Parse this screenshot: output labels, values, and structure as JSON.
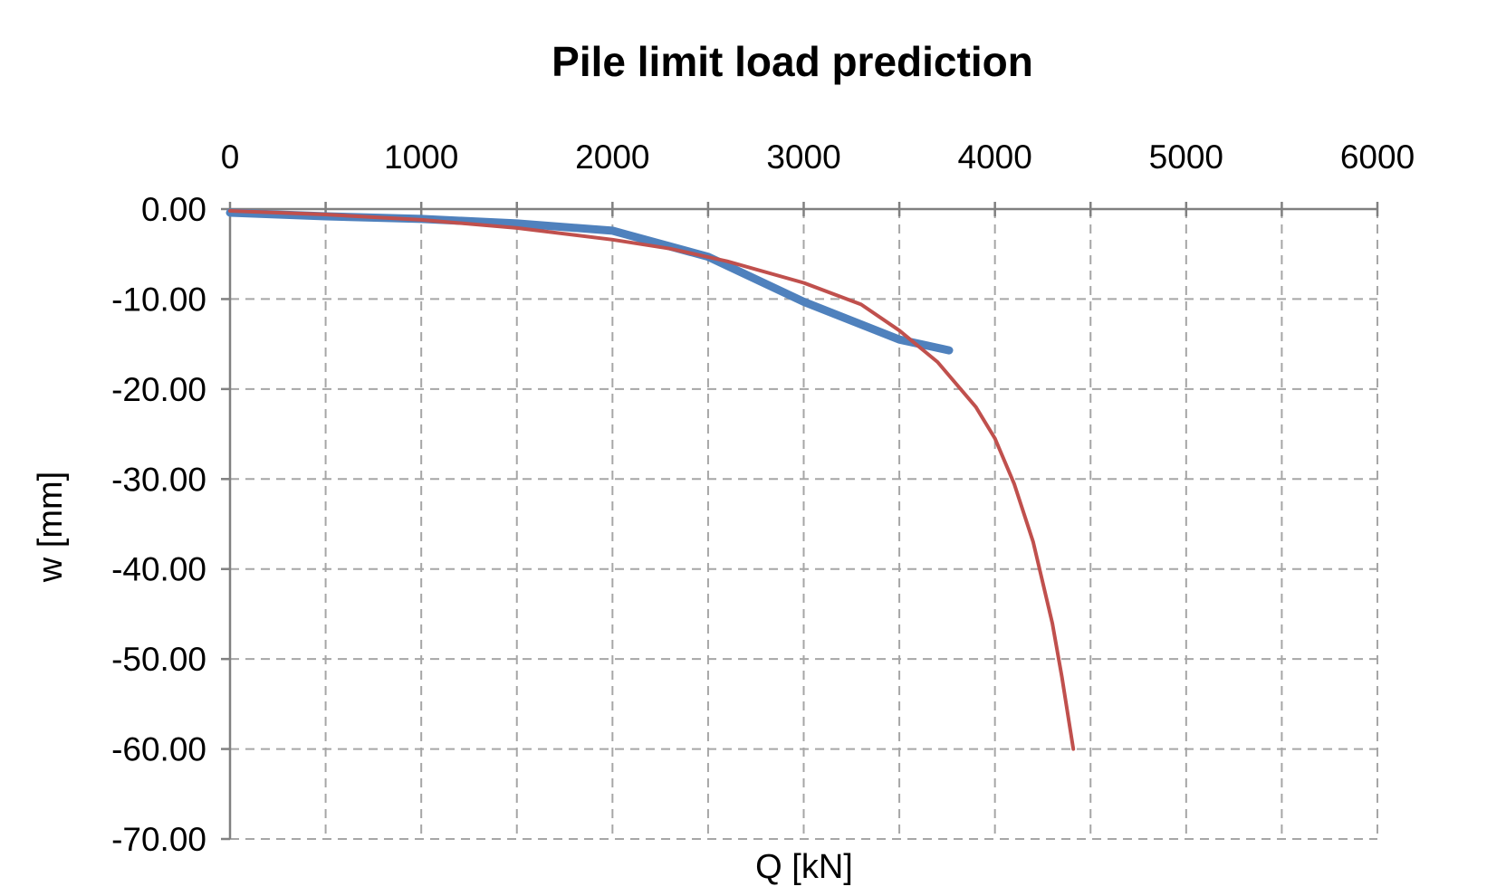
{
  "chart_data": {
    "type": "line",
    "title": "Pile limit load prediction",
    "xlabel": "Q [kN]",
    "ylabel": "w [mm]",
    "xlim": [
      0,
      6000
    ],
    "ylim": [
      -70,
      0
    ],
    "x_ticks": [
      0,
      1000,
      2000,
      3000,
      4000,
      5000,
      6000
    ],
    "x_tick_labels": [
      "0",
      "1000",
      "2000",
      "3000",
      "4000",
      "5000",
      "6000"
    ],
    "y_ticks": [
      0,
      -10,
      -20,
      -30,
      -40,
      -50,
      -60,
      -70
    ],
    "y_tick_labels": [
      "0.00",
      "-10.00",
      "-20.00",
      "-30.00",
      "-40.00",
      "-50.00",
      "-60.00",
      "-70.00"
    ],
    "x_axis_position": "top",
    "grid": true,
    "legend": "none",
    "series": [
      {
        "color": "#4f81bd",
        "x": [
          0,
          500,
          1000,
          1500,
          2000,
          2500,
          3000,
          3500,
          3760
        ],
        "y": [
          -0.4,
          -0.8,
          -1.1,
          -1.6,
          -2.4,
          -5.3,
          -10.3,
          -14.5,
          -15.7
        ]
      },
      {
        "color": "#c0504d",
        "x": [
          0,
          500,
          1000,
          1500,
          2000,
          2300,
          2600,
          3000,
          3300,
          3500,
          3700,
          3900,
          4000,
          4100,
          4200,
          4300,
          4350,
          4410
        ],
        "y": [
          -0.2,
          -0.6,
          -1.2,
          -2.1,
          -3.4,
          -4.4,
          -5.8,
          -8.2,
          -10.6,
          -13.5,
          -17.0,
          -22.0,
          -25.5,
          -30.5,
          -37.0,
          -46.0,
          -52.0,
          -60.0
        ]
      }
    ]
  }
}
